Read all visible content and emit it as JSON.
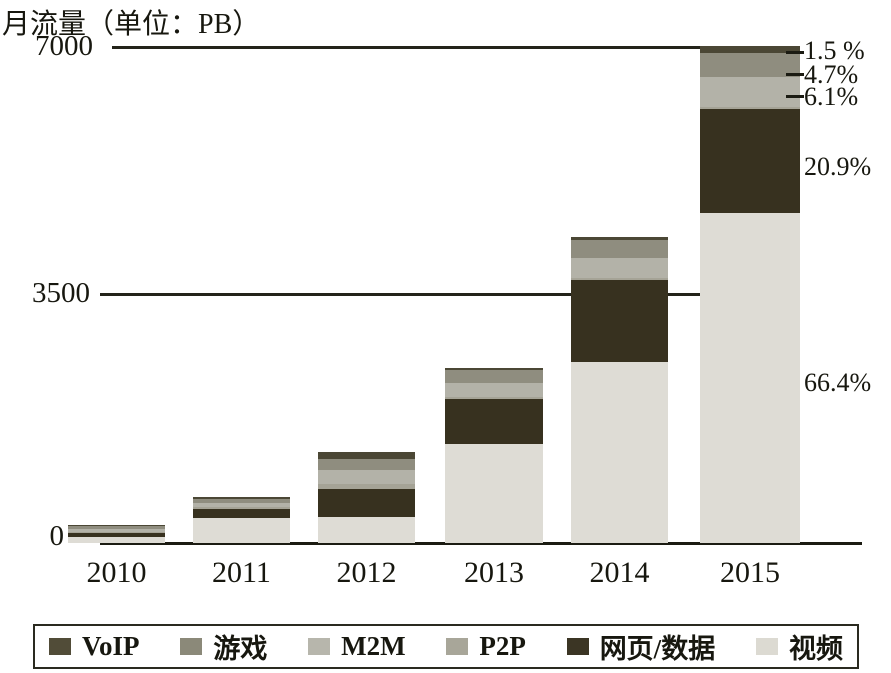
{
  "chart": {
    "title": "月流量（单位：PB）",
    "yticks": [
      "0",
      "3500",
      "7000"
    ],
    "annotations": [
      {
        "label": "1.5 %",
        "target": "2015"
      },
      {
        "label": "4.7%",
        "target": "2015"
      },
      {
        "label": "6.1%",
        "target": "2015"
      },
      {
        "label": "20.9%",
        "target": "2015"
      },
      {
        "label": "66.4%",
        "target": "2015"
      }
    ]
  },
  "chart_data": {
    "type": "bar",
    "stacked": true,
    "title": "月流量（单位：PB）",
    "xlabel": "",
    "ylabel": "月流量 (PB)",
    "ylim": [
      0,
      7000
    ],
    "ytick_values": [
      0,
      3500,
      7000
    ],
    "grid": "horizontal",
    "legend_position": "bottom",
    "categories": [
      "2010",
      "2011",
      "2012",
      "2013",
      "2014",
      "2015"
    ],
    "series": [
      {
        "name": "视频",
        "key": "video",
        "color": "#dedcd5",
        "values": [
          80,
          350,
          360,
          1400,
          2550,
          4648
        ]
      },
      {
        "name": "网页/数据",
        "key": "web-data",
        "color": "#37311f",
        "values": [
          55,
          130,
          400,
          630,
          1150,
          1463
        ]
      },
      {
        "name": "P2P",
        "key": "p2p",
        "color": "#a5a396",
        "values": [
          15,
          20,
          70,
          25,
          30,
          28
        ]
      },
      {
        "name": "M2M",
        "key": "m2m",
        "color": "#b3b2a8",
        "values": [
          45,
          60,
          200,
          200,
          290,
          427
        ]
      },
      {
        "name": "游戏",
        "key": "games",
        "color": "#8f8d7f",
        "values": [
          45,
          60,
          150,
          180,
          250,
          329
        ]
      },
      {
        "name": "VoIP",
        "key": "voip",
        "color": "#4b4735",
        "values": [
          15,
          25,
          100,
          30,
          40,
          105
        ]
      }
    ],
    "percent_labels_2015": {
      "VoIP": "1.5 %",
      "游戏": "4.7%",
      "M2M": "6.1%",
      "网页/数据": "20.9%",
      "视频": "66.4%"
    }
  },
  "legend": {
    "items": [
      {
        "label": "VoIP",
        "color": "#514c38"
      },
      {
        "label": "游戏",
        "color": "#8b8979"
      },
      {
        "label": "M2M",
        "color": "#b7b6ac"
      },
      {
        "label": "P2P",
        "color": "#a8a699"
      },
      {
        "label": "网页/数据",
        "color": "#3b3524"
      },
      {
        "label": "视频",
        "color": "#dcdad2"
      }
    ]
  },
  "colors": {
    "text": "#17170f",
    "gridline": "#23231a",
    "axis": "#1b1b12",
    "background": "#ffffff"
  }
}
